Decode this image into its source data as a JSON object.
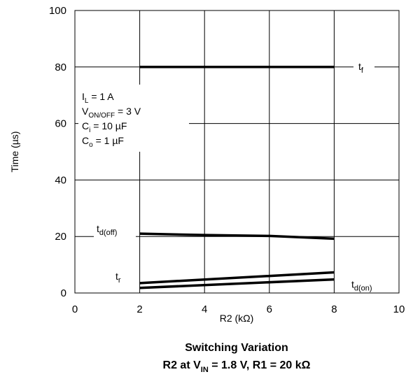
{
  "chart_data": {
    "type": "line",
    "xlabel": "R2 (kΩ)",
    "ylabel": "Time (µs)",
    "xlim": [
      0,
      10
    ],
    "ylim": [
      0,
      100
    ],
    "xticks": [
      "0",
      "2",
      "4",
      "6",
      "8",
      "10"
    ],
    "yticks": [
      "0",
      "20",
      "40",
      "60",
      "80",
      "100"
    ],
    "grid": true,
    "title": "Switching Variation",
    "subtitle": {
      "prefix": "R2 at V",
      "sub": "IN",
      "suffix": " = 1.8 V, R1 = 20 kΩ"
    },
    "series": [
      {
        "name": "t_f",
        "label_main": "t",
        "label_sub": "f",
        "x": [
          2,
          8
        ],
        "y": [
          80,
          80
        ]
      },
      {
        "name": "t_d(off)",
        "label_main": "t",
        "label_sub": "d(off)",
        "x": [
          2,
          4,
          6,
          8
        ],
        "y": [
          21,
          20.5,
          20.2,
          19.2
        ]
      },
      {
        "name": "t_r",
        "label_main": "t",
        "label_sub": "r",
        "x": [
          2,
          8
        ],
        "y": [
          3.5,
          7.3
        ]
      },
      {
        "name": "t_d(on)",
        "label_main": "t",
        "label_sub": "d(on)",
        "x": [
          2,
          8
        ],
        "y": [
          1.8,
          4.8
        ]
      }
    ],
    "conditions": [
      {
        "main": "I",
        "sub": "L",
        "rest": " = 1 A"
      },
      {
        "main": "V",
        "sub": "ON/OFF",
        "rest": " = 3 V"
      },
      {
        "main": "C",
        "sub": "i",
        "rest": " = 10 µF"
      },
      {
        "main": "C",
        "sub": "o",
        "rest": " = 1 µF"
      }
    ]
  }
}
